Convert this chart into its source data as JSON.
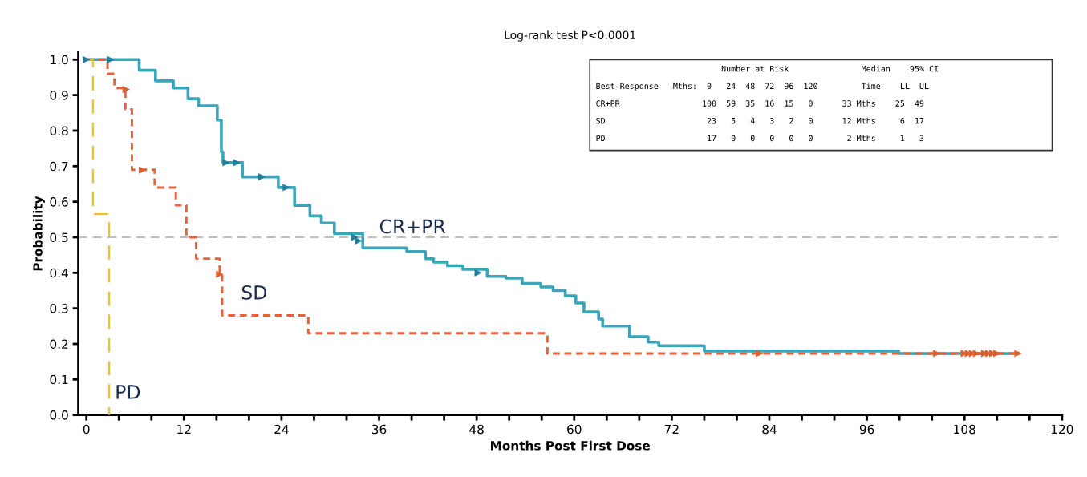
{
  "chart_data": {
    "type": "step",
    "title": "Log-rank test P<0.0001",
    "xlabel": "Months Post First Dose",
    "ylabel": "Probability",
    "xlim": [
      -1,
      120
    ],
    "ylim": [
      0,
      1.02
    ],
    "xticks": [
      0,
      {
        "value": 4,
        "label": null
      },
      {
        "value": 8,
        "label": null
      },
      12,
      {
        "value": 16,
        "label": null
      },
      {
        "value": 20,
        "label": null
      },
      24,
      {
        "value": 28,
        "label": null
      },
      {
        "value": 32,
        "label": null
      },
      36,
      {
        "value": 40,
        "label": null
      },
      {
        "value": 44,
        "label": null
      },
      48,
      {
        "value": 52,
        "label": null
      },
      {
        "value": 56,
        "label": null
      },
      60,
      {
        "value": 64,
        "label": null
      },
      {
        "value": 68,
        "label": null
      },
      72,
      {
        "value": 76,
        "label": null
      },
      {
        "value": 80,
        "label": null
      },
      84,
      {
        "value": 88,
        "label": null
      },
      {
        "value": 92,
        "label": null
      },
      96,
      {
        "value": 100,
        "label": null
      },
      {
        "value": 104,
        "label": null
      },
      108,
      {
        "value": 112,
        "label": null
      },
      {
        "value": 116,
        "label": null
      },
      120
    ],
    "yticks": [
      {
        "value": 0,
        "label": "0.0"
      },
      {
        "value": 0.1,
        "label": "0.1"
      },
      {
        "value": 0.2,
        "label": "0.2"
      },
      {
        "value": 0.3,
        "label": "0.3"
      },
      {
        "value": 0.4,
        "label": "0.4"
      },
      {
        "value": 0.5,
        "label": "0.5"
      },
      {
        "value": 0.6,
        "label": "0.6"
      },
      {
        "value": 0.7,
        "label": "0.7"
      },
      {
        "value": 0.8,
        "label": "0.8"
      },
      {
        "value": 0.9,
        "label": "0.9"
      },
      {
        "value": 1,
        "label": "1.0"
      }
    ],
    "grid": false,
    "legend": false,
    "ref_lines": [
      {
        "axis": "y",
        "value": 0.5,
        "color": "#a8a8a8",
        "line_style": "dashed"
      }
    ],
    "series": [
      {
        "name": "CR+PR",
        "color": "#3aa6b9",
        "line_style": "solid",
        "marker": "none",
        "x": [
          0,
          6.5,
          8.5,
          10.7,
          12.5,
          13.8,
          16.1,
          16.6,
          16.8,
          19.2,
          23.6,
          25.6,
          27.5,
          28.9,
          30.5,
          34.0,
          39.4,
          41.7,
          42.7,
          44.4,
          46.3,
          49.3,
          51.6,
          53.6,
          55.9,
          57.4,
          58.9,
          60.2,
          61.2,
          63.0,
          63.5,
          66.8,
          69.1,
          70.4,
          76.0,
          99.9,
          114.6
        ],
        "values": [
          1.0,
          0.97,
          0.94,
          0.92,
          0.89,
          0.87,
          0.83,
          0.74,
          0.71,
          0.67,
          0.64,
          0.59,
          0.56,
          0.54,
          0.51,
          0.47,
          0.46,
          0.44,
          0.43,
          0.42,
          0.41,
          0.39,
          0.385,
          0.37,
          0.36,
          0.35,
          0.335,
          0.315,
          0.29,
          0.27,
          0.25,
          0.22,
          0.205,
          0.195,
          0.18,
          0.173,
          0.173
        ]
      },
      {
        "name": "SD",
        "color": "#e8603c",
        "line_style": "dotted",
        "marker": "none",
        "x": [
          0,
          2.6,
          3.45,
          4.8,
          5.6,
          8.4,
          11.0,
          12.3,
          13.5,
          16.4,
          16.7,
          27.3,
          56.7,
          114.6
        ],
        "values": [
          1.0,
          0.96,
          0.92,
          0.86,
          0.69,
          0.64,
          0.59,
          0.5,
          0.44,
          0.4,
          0.28,
          0.23,
          0.173,
          0.173
        ]
      },
      {
        "name": "PD",
        "color": "#f0c030",
        "line_style": "dashed",
        "marker": "none",
        "x": [
          0,
          0.8,
          2.8
        ],
        "values": [
          1.0,
          0.565,
          0.0
        ]
      },
      {
        "type": "scatter",
        "color": "#1f7f9a",
        "marker": "triangle",
        "x": [
          0,
          3,
          17.2,
          18.5,
          21.6,
          24.6,
          33.0,
          33.5,
          48.2
        ],
        "values": [
          1.0,
          1.0,
          0.71,
          0.71,
          0.67,
          0.64,
          0.5,
          0.49,
          0.4
        ]
      },
      {
        "type": "scatter",
        "color": "#e0602a",
        "marker": "triangle",
        "x": [
          4.9,
          6.9,
          16.4,
          82.8,
          104.6,
          108.0,
          108.5,
          109.0,
          109.5,
          110.5,
          111.0,
          111.5,
          112.0,
          114.6
        ],
        "values": [
          0.916,
          0.689,
          0.396,
          0.173,
          0.173,
          0.173,
          0.173,
          0.173,
          0.173,
          0.173,
          0.173,
          0.173,
          0.173,
          0.173
        ]
      }
    ],
    "annotations": [
      "                          Number at Risk               Median    95% CI",
      "Best Response   Mths:  0   24  48  72  96  120         Time    LL  UL",
      "CR+PR                 100  59  35  16  15   0      33 Mths    25  49",
      "SD                     23   5   4   3   2   0      12 Mths     6  17",
      "PD                     17   0   0   0   0   0       2 Mths     1   3"
    ]
  }
}
